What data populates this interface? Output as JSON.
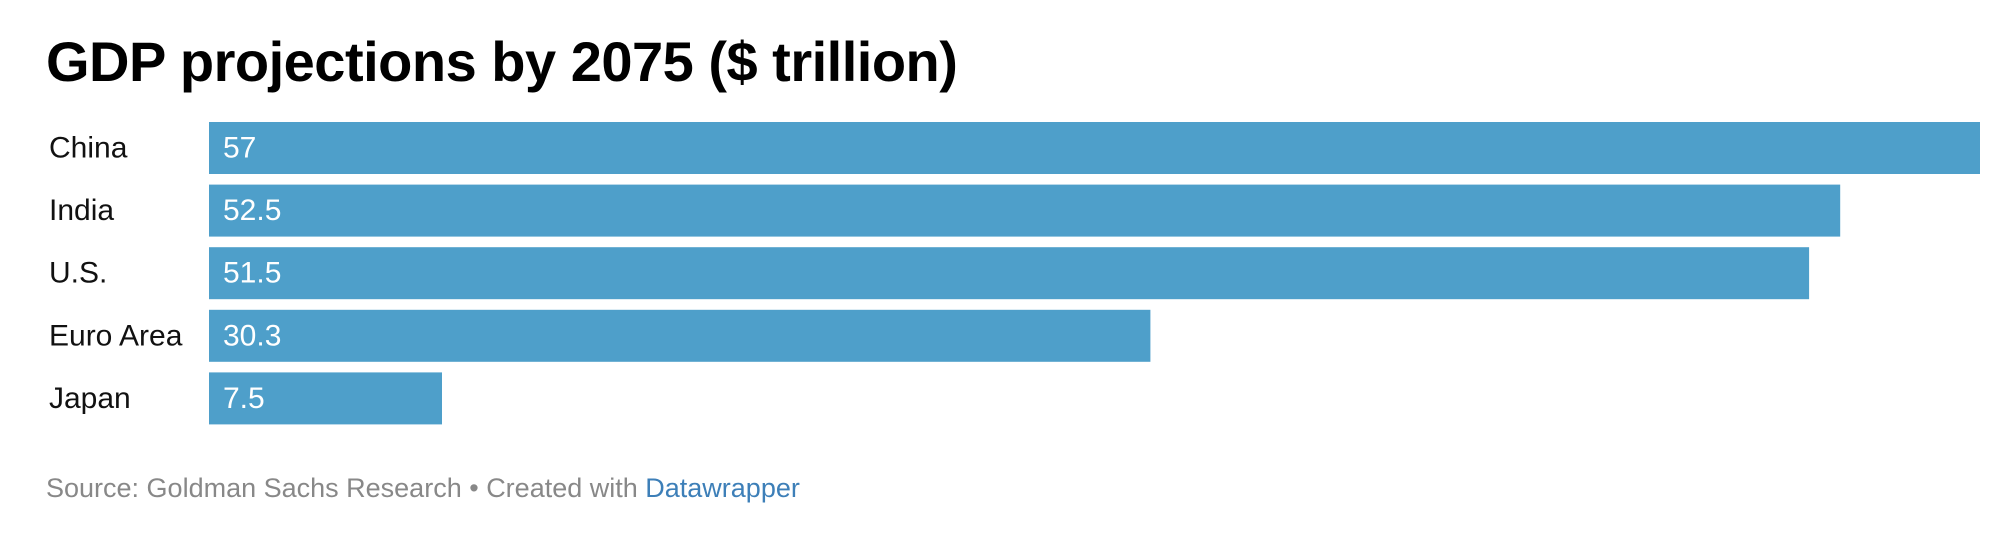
{
  "chart_data": {
    "type": "bar",
    "orientation": "horizontal",
    "title": "GDP projections by 2075 ($ trillion)",
    "categories": [
      "China",
      "India",
      "U.S.",
      "Euro Area",
      "Japan"
    ],
    "values": [
      57,
      52.5,
      51.5,
      30.3,
      7.5
    ],
    "value_labels": [
      "57",
      "52.5",
      "51.5",
      "30.3",
      "7.5"
    ],
    "xlim": [
      0,
      57
    ],
    "grid": false,
    "legend": "none",
    "bar_color": "#4e9fca",
    "label_color": "#ffffff"
  },
  "footer": {
    "source": "Source: Goldman Sachs Research",
    "separator": " • ",
    "created_with": "Created with ",
    "link_text": "Datawrapper",
    "link_color": "#3d7fb8",
    "text_color": "#888888"
  }
}
